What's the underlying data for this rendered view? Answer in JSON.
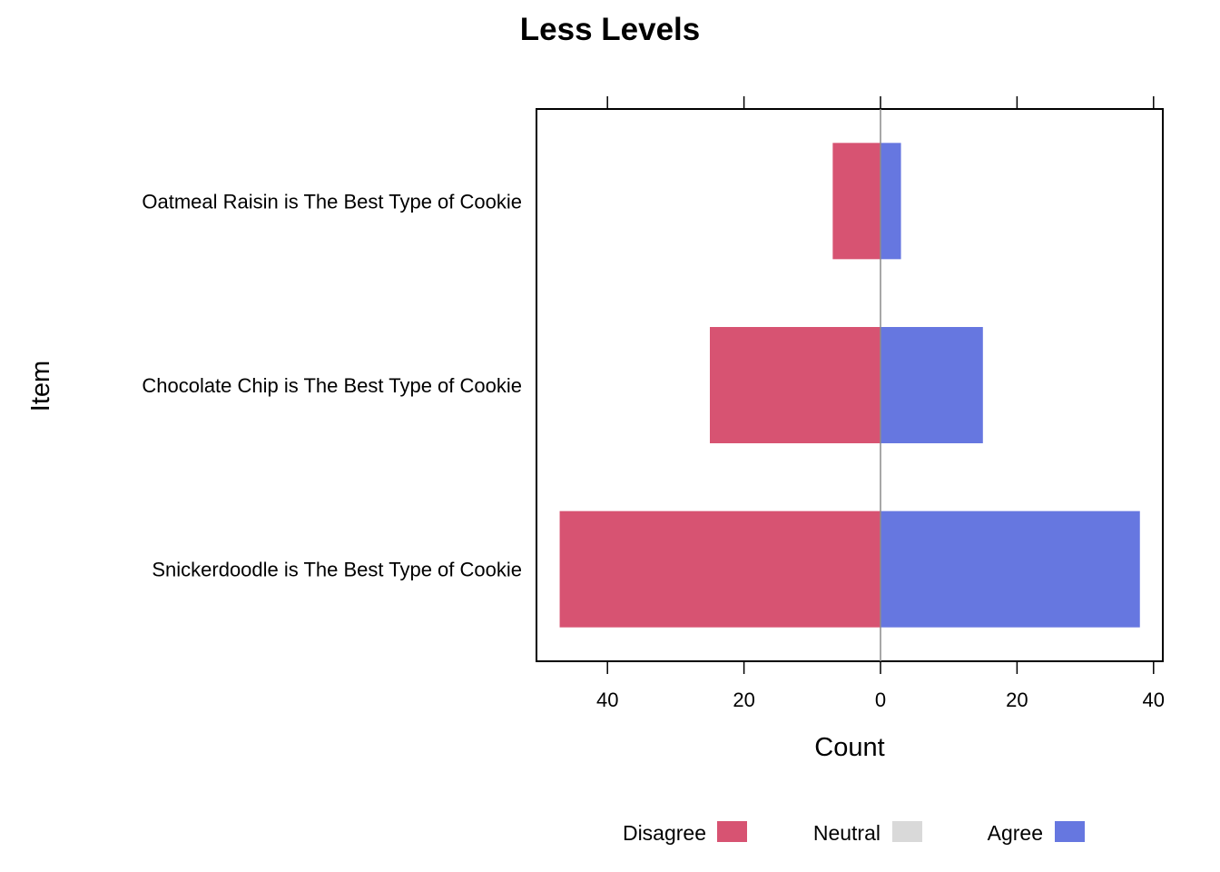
{
  "chart_data": {
    "type": "bar",
    "orientation": "horizontal",
    "diverging": true,
    "title": "Less Levels",
    "xlabel": "Count",
    "ylabel": "Item",
    "xlim": [
      -50,
      41
    ],
    "x_ticks": [
      -40,
      -20,
      0,
      20,
      40
    ],
    "x_tick_labels": [
      "40",
      "20",
      "0",
      "20",
      "40"
    ],
    "grid": false,
    "legend_position": "bottom",
    "categories": [
      "Oatmeal Raisin is The Best Type of Cookie",
      "Chocolate Chip is The Best Type of Cookie",
      "Snickerdoodle is The Best Type of Cookie"
    ],
    "series": [
      {
        "name": "Disagree",
        "color": "#D75372",
        "values": [
          7,
          25,
          47
        ]
      },
      {
        "name": "Neutral",
        "color": "#D9D9D9",
        "values": [
          0,
          0,
          0
        ]
      },
      {
        "name": "Agree",
        "color": "#6677E0",
        "values": [
          3,
          15,
          38
        ]
      }
    ]
  }
}
